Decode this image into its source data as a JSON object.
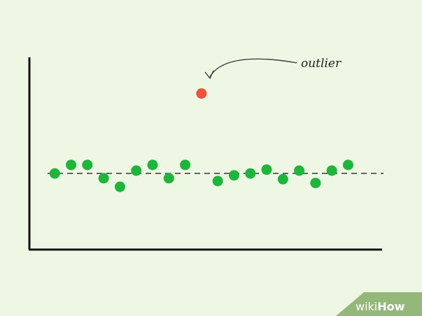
{
  "chart_data": {
    "type": "scatter",
    "title": "",
    "xlabel": "",
    "ylabel": "",
    "grid": false,
    "legend": false,
    "xlim": [
      0,
      21
    ],
    "ylim": [
      0,
      10
    ],
    "series": [
      {
        "color": "#1db53a",
        "points": [
          {
            "x": 1,
            "y": 4.0
          },
          {
            "x": 2,
            "y": 4.45
          },
          {
            "x": 3,
            "y": 4.45
          },
          {
            "x": 4,
            "y": 3.75
          },
          {
            "x": 5,
            "y": 3.3
          },
          {
            "x": 6,
            "y": 4.15
          },
          {
            "x": 7,
            "y": 4.45
          },
          {
            "x": 8,
            "y": 3.75
          },
          {
            "x": 9,
            "y": 4.45
          },
          {
            "x": 11,
            "y": 3.6
          },
          {
            "x": 12,
            "y": 3.9
          },
          {
            "x": 13,
            "y": 4.0
          },
          {
            "x": 14,
            "y": 4.2
          },
          {
            "x": 15,
            "y": 3.7
          },
          {
            "x": 16,
            "y": 4.15
          },
          {
            "x": 17,
            "y": 3.5
          },
          {
            "x": 18,
            "y": 4.15
          },
          {
            "x": 19,
            "y": 4.45
          }
        ]
      },
      {
        "color": "#f0503c",
        "points": [
          {
            "x": 10,
            "y": 8.2
          }
        ]
      }
    ],
    "reference_line": {
      "y": 4.0,
      "style": "dashed",
      "color": "#444444"
    },
    "annotations": [
      {
        "text": "outlier",
        "points_to": {
          "x": 10,
          "y": 8.2
        }
      }
    ]
  },
  "watermark": {
    "prefix": "wiki",
    "suffix": "How",
    "color": "#93b87a"
  }
}
